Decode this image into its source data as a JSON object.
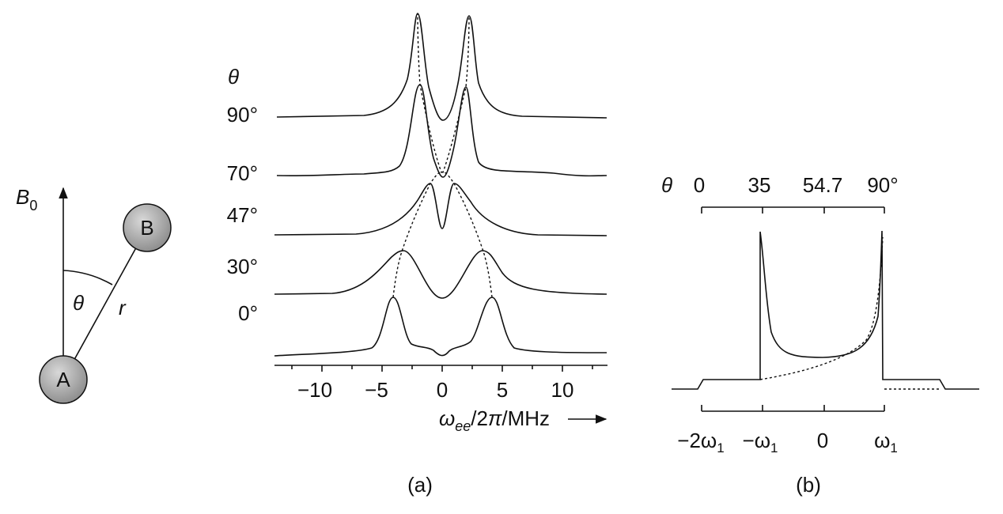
{
  "geometry": {
    "field_symbol": "B",
    "field_subscript": "0",
    "spin_a": "A",
    "spin_b": "B",
    "angle_label": "θ",
    "distance_label": "r"
  },
  "panel_a": {
    "theta_header": "θ",
    "angles": [
      "90°",
      "70°",
      "47°",
      "30°",
      "0°"
    ],
    "x_ticks": [
      "−10",
      "−5",
      "0",
      "5",
      "10"
    ],
    "x_label": {
      "symbol": "ω",
      "subscript": "ee",
      "rest1": "/2",
      "pi": "π",
      "rest2": "/MHz"
    },
    "caption": "(a)"
  },
  "panel_b": {
    "theta_label": "θ",
    "top_ticks": [
      "0",
      "35",
      "54.7",
      "90°"
    ],
    "bottom_ticks": [
      {
        "main": "−2ω",
        "sub": "1"
      },
      {
        "main": "−ω",
        "sub": "1"
      },
      {
        "main": "0"
      },
      {
        "main": "ω",
        "sub": "1"
      }
    ],
    "caption": "(b)"
  }
}
